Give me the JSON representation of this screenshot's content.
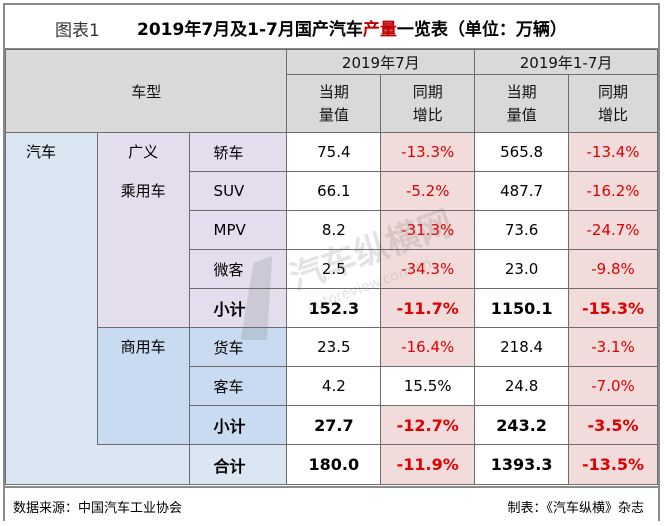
{
  "figure": {
    "label": "图表1",
    "title_pre": "2019年7月及1-7月国产汽车",
    "title_highlight": "产量",
    "title_post": "一览表（单位：万辆）"
  },
  "header": {
    "model_type": "车型",
    "period_month": "2019年7月",
    "period_ytd": "2019年1-7月",
    "current_value_l1": "当期",
    "current_value_l2": "量值",
    "yoy_l1": "同期",
    "yoy_l2": "增比"
  },
  "categories": {
    "vehicle": "汽车",
    "passenger": "广义\n乘用车",
    "passenger_l1": "广义",
    "passenger_l2": "乘用车",
    "commercial": "商用车"
  },
  "rows": [
    {
      "type": "轿车",
      "month_value": "75.4",
      "month_yoy": "-13.3%",
      "ytd_value": "565.8",
      "ytd_yoy": "-13.4%"
    },
    {
      "type": "SUV",
      "month_value": "66.1",
      "month_yoy": "-5.2%",
      "ytd_value": "487.7",
      "ytd_yoy": "-16.2%"
    },
    {
      "type": "MPV",
      "month_value": "8.2",
      "month_yoy": "-31.3%",
      "ytd_value": "73.6",
      "ytd_yoy": "-24.7%"
    },
    {
      "type": "微客",
      "month_value": "2.5",
      "month_yoy": "-34.3%",
      "ytd_value": "23.0",
      "ytd_yoy": "-9.8%"
    },
    {
      "type": "小计",
      "month_value": "152.3",
      "month_yoy": "-11.7%",
      "ytd_value": "1150.1",
      "ytd_yoy": "-15.3%"
    },
    {
      "type": "货车",
      "month_value": "23.5",
      "month_yoy": "-16.4%",
      "ytd_value": "218.4",
      "ytd_yoy": "-3.1%"
    },
    {
      "type": "客车",
      "month_value": "4.2",
      "month_yoy": "15.5%",
      "ytd_value": "24.8",
      "ytd_yoy": "-7.0%"
    },
    {
      "type": "小计",
      "month_value": "27.7",
      "month_yoy": "-12.7%",
      "ytd_value": "243.2",
      "ytd_yoy": "-3.5%"
    },
    {
      "type": "合计",
      "month_value": "180.0",
      "month_yoy": "-11.9%",
      "ytd_value": "1393.3",
      "ytd_yoy": "-13.5%"
    }
  ],
  "footer": {
    "source": "数据来源：中国汽车工业协会",
    "maker": "制表：《汽车纵横》杂志"
  },
  "colors": {
    "negative": "#e00000",
    "header_bg": "#d9d9d9",
    "category_bg": "#dae6f2",
    "passenger_bg": "#e3dded",
    "commercial_bg": "#c9dbf0",
    "negative_cell_bg": "#f2dcdb"
  },
  "watermark": {
    "text": "汽车纵横网",
    "url": "autoreview.com.cn"
  }
}
